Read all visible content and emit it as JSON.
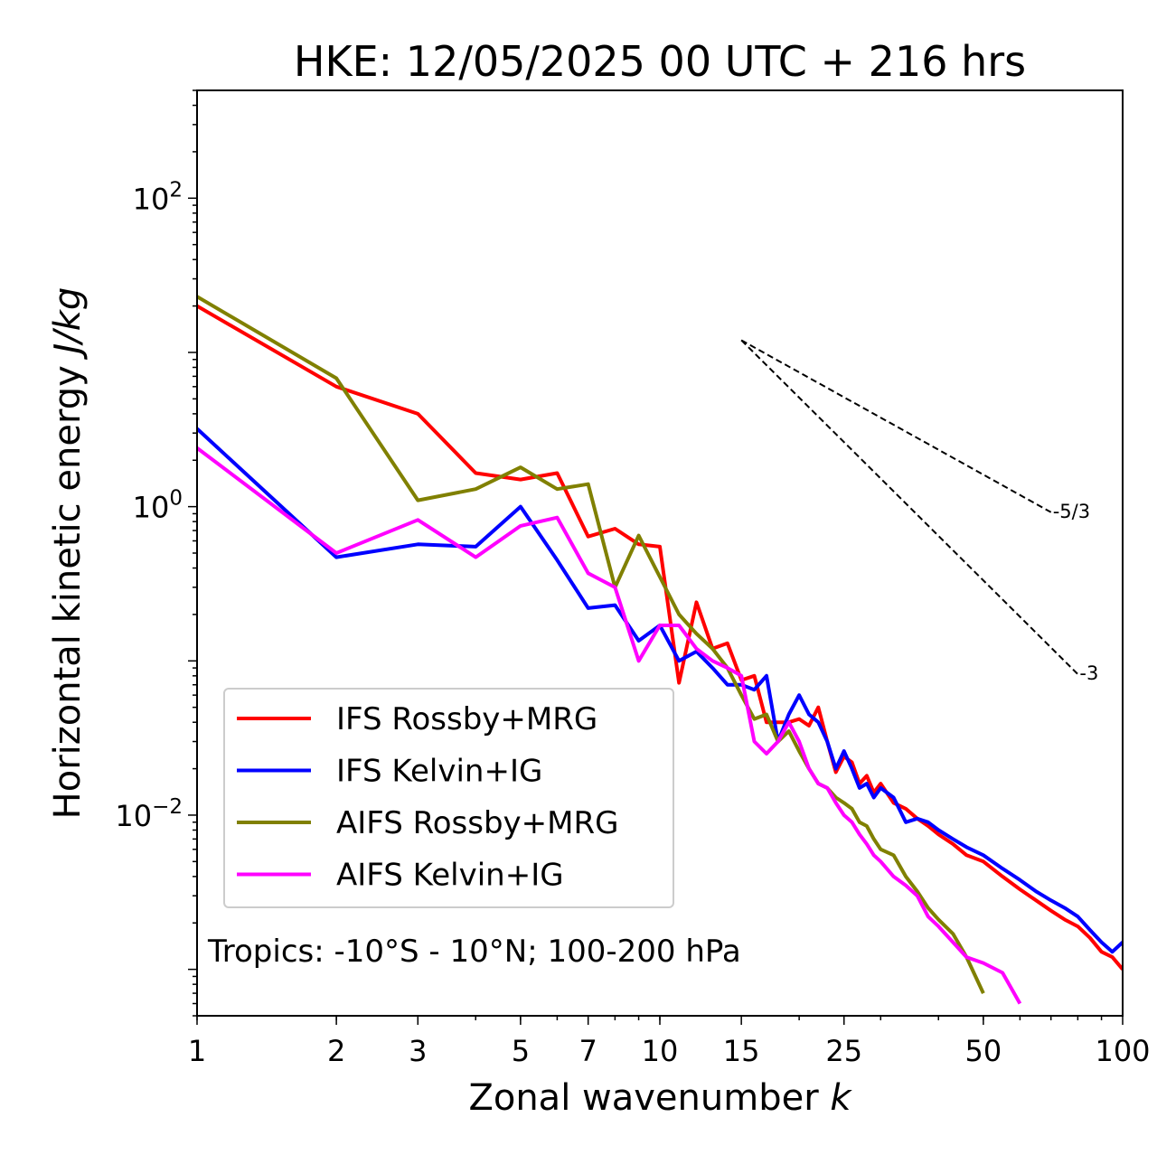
{
  "chart_data": {
    "type": "line",
    "title": "HKE: 12/05/2025 00 UTC + 216 hrs",
    "xlabel": "Zonal wavenumber k",
    "xlabel_plain": "Zonal wavenumber ",
    "xlabel_var": "k",
    "ylabel_plain": "Horizontal kinetic energy ",
    "ylabel_unit": "J/kg",
    "xscale": "log",
    "yscale": "log",
    "xlim": [
      1,
      100
    ],
    "ylim": [
      0.0005,
      500
    ],
    "x_ticks": [
      1,
      2,
      3,
      5,
      7,
      10,
      15,
      25,
      50,
      100
    ],
    "x_tick_labels": [
      "1",
      "2",
      "3",
      "5",
      "7",
      "10",
      "15",
      "25",
      "50",
      "100"
    ],
    "y_ticks": [
      0.01,
      1,
      100
    ],
    "y_tick_labels": [
      {
        "base": "10",
        "exp": "−2"
      },
      {
        "base": "10",
        "exp": "0"
      },
      {
        "base": "10",
        "exp": "2"
      }
    ],
    "grid": false,
    "legend_position": "lower-left",
    "annotation": "Tropics: -10°S - 10°N; 100-200 hPa",
    "reference_slopes": [
      {
        "label": "-5/3",
        "from": [
          15,
          12.0
        ],
        "to": [
          70,
          0.92
        ]
      },
      {
        "label": "-3",
        "from": [
          15,
          12.0
        ],
        "to": [
          80,
          0.082
        ]
      }
    ],
    "series": [
      {
        "name": "IFS Rossby+MRG",
        "color": "#ff0000",
        "points": [
          [
            1,
            20
          ],
          [
            2,
            6
          ],
          [
            3,
            4
          ],
          [
            4,
            1.65
          ],
          [
            5,
            1.5
          ],
          [
            6,
            1.65
          ],
          [
            7,
            0.64
          ],
          [
            8,
            0.72
          ],
          [
            9,
            0.57
          ],
          [
            10,
            0.55
          ],
          [
            11,
            0.072
          ],
          [
            12,
            0.24
          ],
          [
            13,
            0.12
          ],
          [
            14,
            0.13
          ],
          [
            15,
            0.075
          ],
          [
            16,
            0.08
          ],
          [
            17,
            0.04
          ],
          [
            18,
            0.04
          ],
          [
            19,
            0.04
          ],
          [
            20,
            0.042
          ],
          [
            21,
            0.038
          ],
          [
            22,
            0.05
          ],
          [
            23,
            0.03
          ],
          [
            24,
            0.019
          ],
          [
            25,
            0.024
          ],
          [
            26,
            0.022
          ],
          [
            27,
            0.016
          ],
          [
            28,
            0.018
          ],
          [
            29,
            0.014
          ],
          [
            30,
            0.016
          ],
          [
            32,
            0.012
          ],
          [
            34,
            0.011
          ],
          [
            36,
            0.0095
          ],
          [
            38,
            0.0085
          ],
          [
            40,
            0.0075
          ],
          [
            43,
            0.0065
          ],
          [
            46,
            0.0055
          ],
          [
            50,
            0.005
          ],
          [
            55,
            0.004
          ],
          [
            60,
            0.0033
          ],
          [
            65,
            0.0028
          ],
          [
            70,
            0.0024
          ],
          [
            75,
            0.0021
          ],
          [
            80,
            0.0019
          ],
          [
            85,
            0.0016
          ],
          [
            90,
            0.0013
          ],
          [
            95,
            0.0012
          ],
          [
            100,
            0.001
          ]
        ]
      },
      {
        "name": "IFS Kelvin+IG",
        "color": "#0000ff",
        "points": [
          [
            1,
            3.2
          ],
          [
            2,
            0.47
          ],
          [
            3,
            0.57
          ],
          [
            4,
            0.55
          ],
          [
            5,
            1.0
          ],
          [
            6,
            0.45
          ],
          [
            7,
            0.22
          ],
          [
            8,
            0.23
          ],
          [
            9,
            0.135
          ],
          [
            10,
            0.17
          ],
          [
            11,
            0.1
          ],
          [
            12,
            0.115
          ],
          [
            13,
            0.09
          ],
          [
            14,
            0.07
          ],
          [
            15,
            0.07
          ],
          [
            16,
            0.065
          ],
          [
            17,
            0.08
          ],
          [
            18,
            0.03
          ],
          [
            19,
            0.045
          ],
          [
            20,
            0.06
          ],
          [
            21,
            0.045
          ],
          [
            22,
            0.04
          ],
          [
            23,
            0.03
          ],
          [
            24,
            0.02
          ],
          [
            25,
            0.026
          ],
          [
            26,
            0.02
          ],
          [
            27,
            0.015
          ],
          [
            28,
            0.016
          ],
          [
            29,
            0.013
          ],
          [
            30,
            0.015
          ],
          [
            32,
            0.013
          ],
          [
            34,
            0.009
          ],
          [
            36,
            0.0095
          ],
          [
            38,
            0.009
          ],
          [
            40,
            0.008
          ],
          [
            43,
            0.007
          ],
          [
            46,
            0.0062
          ],
          [
            50,
            0.0055
          ],
          [
            55,
            0.0045
          ],
          [
            60,
            0.0038
          ],
          [
            65,
            0.0032
          ],
          [
            70,
            0.0028
          ],
          [
            75,
            0.0025
          ],
          [
            80,
            0.0022
          ],
          [
            85,
            0.0018
          ],
          [
            90,
            0.0015
          ],
          [
            95,
            0.0013
          ],
          [
            100,
            0.0015
          ]
        ]
      },
      {
        "name": "AIFS Rossby+MRG",
        "color": "#808000",
        "points": [
          [
            1,
            23
          ],
          [
            2,
            6.8
          ],
          [
            3,
            1.1
          ],
          [
            4,
            1.3
          ],
          [
            5,
            1.8
          ],
          [
            6,
            1.3
          ],
          [
            7,
            1.4
          ],
          [
            8,
            0.3
          ],
          [
            9,
            0.65
          ],
          [
            10,
            0.35
          ],
          [
            11,
            0.2
          ],
          [
            12,
            0.15
          ],
          [
            13,
            0.12
          ],
          [
            14,
            0.09
          ],
          [
            15,
            0.06
          ],
          [
            16,
            0.042
          ],
          [
            17,
            0.045
          ],
          [
            18,
            0.03
          ],
          [
            19,
            0.035
          ],
          [
            20,
            0.026
          ],
          [
            21,
            0.02
          ],
          [
            22,
            0.016
          ],
          [
            23,
            0.015
          ],
          [
            24,
            0.013
          ],
          [
            25,
            0.012
          ],
          [
            26,
            0.011
          ],
          [
            27,
            0.009
          ],
          [
            28,
            0.0085
          ],
          [
            29,
            0.007
          ],
          [
            30,
            0.006
          ],
          [
            32,
            0.0055
          ],
          [
            34,
            0.004
          ],
          [
            36,
            0.0032
          ],
          [
            38,
            0.0025
          ],
          [
            40,
            0.0021
          ],
          [
            43,
            0.0017
          ],
          [
            46,
            0.0012
          ],
          [
            50,
            0.0007
          ]
        ]
      },
      {
        "name": "AIFS Kelvin+IG",
        "color": "#ff00ff",
        "points": [
          [
            1,
            2.4
          ],
          [
            2,
            0.5
          ],
          [
            3,
            0.82
          ],
          [
            4,
            0.47
          ],
          [
            5,
            0.75
          ],
          [
            6,
            0.85
          ],
          [
            7,
            0.37
          ],
          [
            8,
            0.3
          ],
          [
            9,
            0.1
          ],
          [
            10,
            0.17
          ],
          [
            11,
            0.17
          ],
          [
            12,
            0.12
          ],
          [
            13,
            0.1
          ],
          [
            14,
            0.09
          ],
          [
            15,
            0.08
          ],
          [
            16,
            0.03
          ],
          [
            17,
            0.025
          ],
          [
            18,
            0.03
          ],
          [
            19,
            0.04
          ],
          [
            20,
            0.03
          ],
          [
            21,
            0.02
          ],
          [
            22,
            0.016
          ],
          [
            23,
            0.015
          ],
          [
            24,
            0.012
          ],
          [
            25,
            0.01
          ],
          [
            26,
            0.009
          ],
          [
            27,
            0.0075
          ],
          [
            28,
            0.0065
          ],
          [
            29,
            0.0055
          ],
          [
            30,
            0.005
          ],
          [
            32,
            0.004
          ],
          [
            34,
            0.0035
          ],
          [
            36,
            0.003
          ],
          [
            38,
            0.0022
          ],
          [
            40,
            0.0019
          ],
          [
            43,
            0.0015
          ],
          [
            46,
            0.0012
          ],
          [
            50,
            0.0011
          ],
          [
            55,
            0.00095
          ],
          [
            60,
            0.0006
          ]
        ]
      }
    ]
  }
}
